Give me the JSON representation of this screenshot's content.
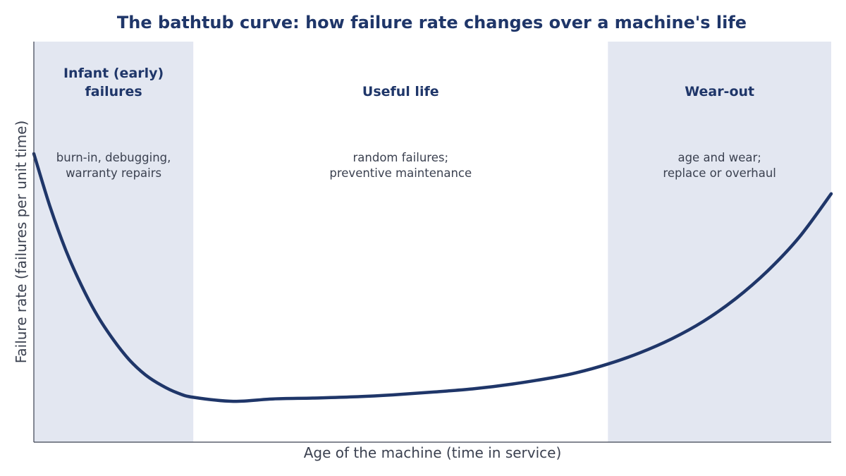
{
  "chart_data": {
    "type": "line",
    "title": "The bathtub curve: how failure rate changes over a machine's life",
    "xlabel": "Age of the machine (time in service)",
    "ylabel": "Failure rate (failures per unit time)",
    "xlim": [
      0,
      100
    ],
    "ylim": [
      0,
      100
    ],
    "grid": false,
    "legend": "none",
    "series": [
      {
        "x": [
          0,
          2,
          4,
          6,
          8,
          10,
          12,
          14,
          16,
          18,
          20,
          25,
          30,
          35,
          40,
          45,
          50,
          55,
          60,
          65,
          68,
          72,
          76,
          80,
          84,
          88,
          92,
          96,
          100
        ],
        "values": [
          72.0,
          59.0,
          48.0,
          39.0,
          31.5,
          25.5,
          20.5,
          16.8,
          14.2,
          12.3,
          11.2,
          10.2,
          10.8,
          11.0,
          11.3,
          11.8,
          12.5,
          13.3,
          14.5,
          16.1,
          17.3,
          19.5,
          22.3,
          25.8,
          30.2,
          35.8,
          42.7,
          51.2,
          62.0
        ]
      }
    ],
    "phases": [
      {
        "name": "infant",
        "start": 0,
        "end": 20,
        "shaded": true,
        "title": [
          "Infant (early)",
          "failures"
        ],
        "note": [
          "burn-in, debugging,",
          "warranty repairs"
        ]
      },
      {
        "name": "useful",
        "start": 20,
        "end": 72,
        "shaded": false,
        "title": [
          "Useful life"
        ],
        "note": [
          "random failures;",
          "preventive maintenance"
        ]
      },
      {
        "name": "wearout",
        "start": 72,
        "end": 100,
        "shaded": true,
        "title": [
          "Wear-out"
        ],
        "note": [
          "age and wear;",
          "replace or overhaul"
        ]
      }
    ]
  },
  "colors": {
    "curve": "#1f3669",
    "shade": "#e3e7f1",
    "title": "#1f3669",
    "phase_title": "#1f3669",
    "note": "#3b4150",
    "axis_label": "#3b4150",
    "axis_line": "#3b4150"
  }
}
